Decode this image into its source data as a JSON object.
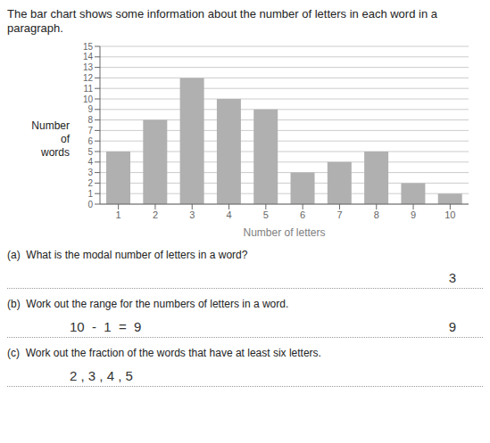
{
  "chart_data": {
    "type": "bar",
    "title": "The bar chart shows some information about the number of letters in each word in a paragraph.",
    "categories": [
      1,
      2,
      3,
      4,
      5,
      6,
      7,
      8,
      9,
      10
    ],
    "values": [
      5,
      8,
      12,
      10,
      9,
      3,
      4,
      5,
      2,
      1
    ],
    "color": "#b0b0b0",
    "xlabel": "Number of letters",
    "ylabel": "Number\nof\nwords",
    "ylim": [
      0,
      15
    ],
    "yticks": [
      0,
      1,
      2,
      3,
      4,
      5,
      6,
      7,
      8,
      9,
      10,
      11,
      12,
      13,
      14,
      15
    ],
    "grid": true,
    "annotations": [
      "(a)  What is the modal number of letters in a word?",
      "3",
      "(b)  Work out the range for the numbers of letters in a word.",
      "10  -  1  =  9",
      "9",
      "(c)  Work out the fraction of the words that have at least six letters.",
      "2 , 3 , 4 , 5"
    ]
  }
}
